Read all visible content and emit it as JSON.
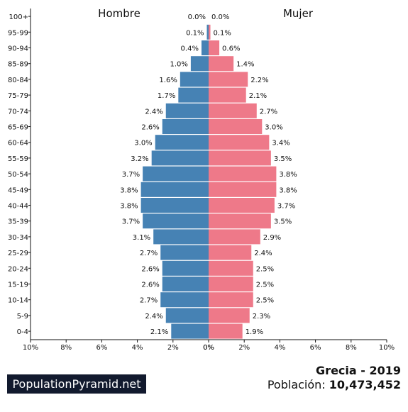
{
  "chart_data": {
    "type": "bar",
    "orientation": "horizontal-butterfly",
    "left_header": "Hombre",
    "right_header": "Mujer",
    "categories": [
      "100+",
      "95-99",
      "90-94",
      "85-89",
      "80-84",
      "75-79",
      "70-74",
      "65-69",
      "60-64",
      "55-59",
      "50-54",
      "45-49",
      "40-44",
      "35-39",
      "30-34",
      "25-29",
      "20-24",
      "15-19",
      "10-14",
      "5-9",
      "0-4"
    ],
    "series": [
      {
        "name": "Hombre",
        "side": "left",
        "color": "#4682b4",
        "values": [
          0.0,
          0.1,
          0.4,
          1.0,
          1.6,
          1.7,
          2.4,
          2.6,
          3.0,
          3.2,
          3.7,
          3.8,
          3.8,
          3.7,
          3.1,
          2.7,
          2.6,
          2.6,
          2.7,
          2.4,
          2.1
        ],
        "labels": [
          "0.0%",
          "0.1%",
          "0.4%",
          "1.0%",
          "1.6%",
          "1.7%",
          "2.4%",
          "2.6%",
          "3.0%",
          "3.2%",
          "3.7%",
          "3.8%",
          "3.8%",
          "3.7%",
          "3.1%",
          "2.7%",
          "2.6%",
          "2.6%",
          "2.7%",
          "2.4%",
          "2.1%"
        ]
      },
      {
        "name": "Mujer",
        "side": "right",
        "color": "#ee7989",
        "values": [
          0.0,
          0.1,
          0.6,
          1.4,
          2.2,
          2.1,
          2.7,
          3.0,
          3.4,
          3.5,
          3.8,
          3.8,
          3.7,
          3.5,
          2.9,
          2.4,
          2.5,
          2.5,
          2.5,
          2.3,
          1.9
        ],
        "labels": [
          "0.0%",
          "0.1%",
          "0.6%",
          "1.4%",
          "2.2%",
          "2.1%",
          "2.7%",
          "3.0%",
          "3.4%",
          "3.5%",
          "3.8%",
          "3.8%",
          "3.7%",
          "3.5%",
          "2.9%",
          "2.4%",
          "2.5%",
          "2.5%",
          "2.5%",
          "2.3%",
          "1.9%"
        ]
      }
    ],
    "xlim": [
      -10,
      10
    ],
    "x_ticks": [
      "10%",
      "8%",
      "6%",
      "4%",
      "2%",
      "0%",
      "0%",
      "2%",
      "4%",
      "6%",
      "8%",
      "10%"
    ],
    "grid": false
  },
  "footer": {
    "brand": "PopulationPyramid.net",
    "country_year": "Grecia - 2019",
    "population_label": "Población:",
    "population_value": "10,473,452"
  }
}
